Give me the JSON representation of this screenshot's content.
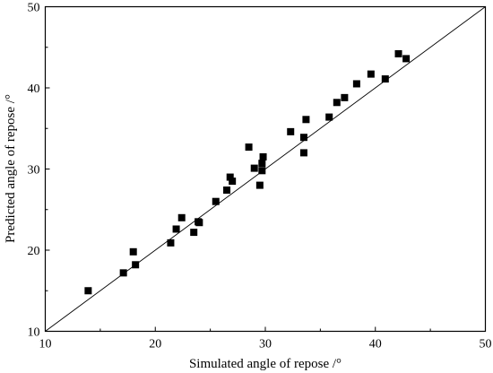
{
  "chart_data": {
    "type": "scatter",
    "title": "",
    "xlabel": "Simulated angle of repose /°",
    "ylabel": "Predicted angle of repose /°",
    "xlim": [
      10,
      50
    ],
    "ylim": [
      10,
      50
    ],
    "xticks": [
      10,
      20,
      30,
      40,
      50
    ],
    "yticks": [
      10,
      20,
      30,
      40,
      50
    ],
    "grid": false,
    "reference_line": {
      "from": [
        10,
        10
      ],
      "to": [
        50,
        50
      ]
    },
    "marker": "square",
    "marker_color": "#000000",
    "series": [
      {
        "points": [
          [
            13.9,
            15.0
          ],
          [
            17.1,
            17.2
          ],
          [
            18.0,
            19.8
          ],
          [
            18.2,
            18.2
          ],
          [
            21.4,
            20.9
          ],
          [
            21.9,
            22.6
          ],
          [
            22.4,
            24.0
          ],
          [
            23.5,
            22.2
          ],
          [
            23.9,
            23.5
          ],
          [
            24.0,
            23.4
          ],
          [
            25.5,
            26.0
          ],
          [
            26.5,
            27.4
          ],
          [
            26.8,
            29.0
          ],
          [
            27.0,
            28.5
          ],
          [
            28.5,
            32.7
          ],
          [
            29.0,
            30.1
          ],
          [
            29.5,
            28.0
          ],
          [
            29.7,
            30.7
          ],
          [
            29.7,
            29.8
          ],
          [
            29.8,
            31.5
          ],
          [
            32.3,
            34.6
          ],
          [
            33.5,
            33.9
          ],
          [
            33.5,
            32.0
          ],
          [
            33.7,
            36.1
          ],
          [
            35.8,
            36.4
          ],
          [
            36.5,
            38.2
          ],
          [
            37.2,
            38.8
          ],
          [
            38.3,
            40.5
          ],
          [
            39.6,
            41.7
          ],
          [
            40.9,
            41.1
          ],
          [
            42.1,
            44.2
          ],
          [
            42.8,
            43.6
          ]
        ]
      }
    ]
  }
}
